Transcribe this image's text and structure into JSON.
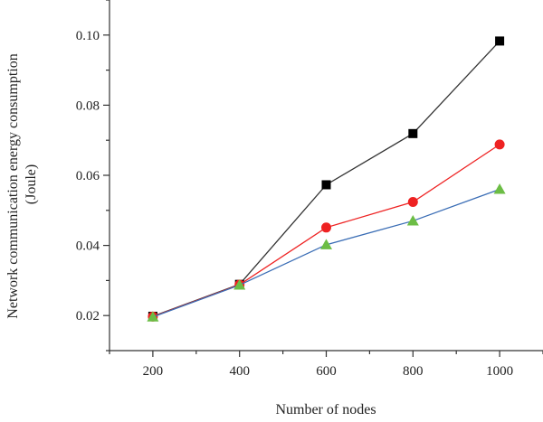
{
  "chart_data": {
    "type": "line",
    "title": "",
    "xlabel": "Number of nodes",
    "ylabel_lines": [
      "Network communication energy consumption",
      "(Joule)"
    ],
    "x": [
      200,
      400,
      600,
      800,
      1000
    ],
    "xlim": [
      100,
      1100
    ],
    "ylim": [
      0.01,
      0.11
    ],
    "xticks": [
      200,
      400,
      600,
      800,
      1000
    ],
    "yticks": [
      0.02,
      0.04,
      0.06,
      0.08,
      0.1
    ],
    "ytick_labels": [
      "0.02",
      "0.04",
      "0.06",
      "0.08",
      "0.10"
    ],
    "grid": false,
    "legend": "none",
    "series": [
      {
        "color": "#333333",
        "marker": "square",
        "marker_color": "#000000",
        "values": [
          0.0198,
          0.0289,
          0.0573,
          0.0719,
          0.0983
        ]
      },
      {
        "color": "#ee2222",
        "marker": "circle",
        "marker_color": "#ee2222",
        "values": [
          0.0197,
          0.0288,
          0.0451,
          0.0524,
          0.0688
        ]
      },
      {
        "color": "#3a6db5",
        "marker": "triangle",
        "marker_color": "#6cbd45",
        "values": [
          0.0196,
          0.0287,
          0.0402,
          0.047,
          0.056
        ]
      }
    ]
  }
}
